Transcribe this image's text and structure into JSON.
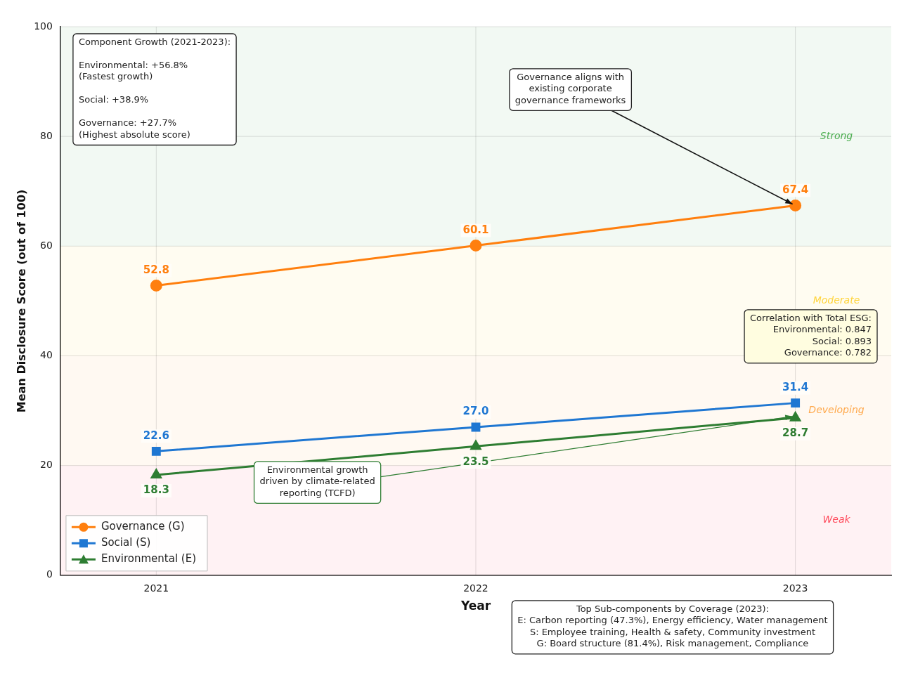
{
  "chart_data": {
    "type": "line",
    "xlabel": "Year",
    "ylabel": "Mean Disclosure Score (out of 100)",
    "x": [
      2021,
      2022,
      2023
    ],
    "xlim": [
      2020.7,
      2023.3
    ],
    "xticks": [
      2021,
      2022,
      2023
    ],
    "ylim": [
      0,
      100
    ],
    "yticks": [
      0,
      20,
      40,
      60,
      80,
      100
    ],
    "grid": true,
    "legend": "bottom left",
    "line_style": "solid",
    "series": [
      {
        "name": "Governance (G)",
        "color": "#ff7f0e",
        "marker": "circle",
        "values": [
          52.8,
          60.1,
          67.4
        ],
        "value_labels": [
          "52.8",
          "60.1",
          "67.4"
        ]
      },
      {
        "name": "Social (S)",
        "color": "#1f77d2",
        "marker": "square",
        "values": [
          22.6,
          27.0,
          31.4
        ],
        "value_labels": [
          "22.6",
          "27.0",
          "31.4"
        ]
      },
      {
        "name": "Environmental (E)",
        "color": "#2e7d32",
        "marker": "triangle",
        "values": [
          18.3,
          23.5,
          28.7
        ],
        "value_labels": [
          "18.3",
          "23.5",
          "28.7"
        ]
      }
    ],
    "bands": [
      {
        "axis": "y",
        "from": 0,
        "to": 20,
        "label": "Weak",
        "color": "#ff4d5e"
      },
      {
        "axis": "y",
        "from": 20,
        "to": 40,
        "label": "Developing",
        "color": "#ffa94d"
      },
      {
        "axis": "y",
        "from": 40,
        "to": 60,
        "label": "Moderate",
        "color": "#ffd43b"
      },
      {
        "axis": "y",
        "from": 60,
        "to": 100,
        "label": "Strong",
        "color": "#4caf50"
      }
    ],
    "annotations": [
      "Component Growth (2021-2023):\n\nEnvironmental: +56.8%\n(Fastest growth)\n\nSocial: +38.9%\n\nGovernance: +27.7%\n(Highest absolute score)",
      {
        "text": "Governance aligns with\nexisting corporate\ngovernance frameworks",
        "x": 2023,
        "y": 67.4
      },
      "Correlation with Total ESG:\nEnvironmental: 0.847\nSocial: 0.893\nGovernance: 0.782",
      {
        "text": "Environmental growth\ndriven by climate-related\nreporting (TCFD)",
        "x": 2023,
        "y": 28.7
      },
      "Top Sub-components by Coverage (2023):\nE: Carbon reporting (47.3%), Energy efficiency, Water management\nS: Employee training, Health & safety, Community investment\nG: Board structure (81.4%), Risk management, Compliance"
    ]
  }
}
